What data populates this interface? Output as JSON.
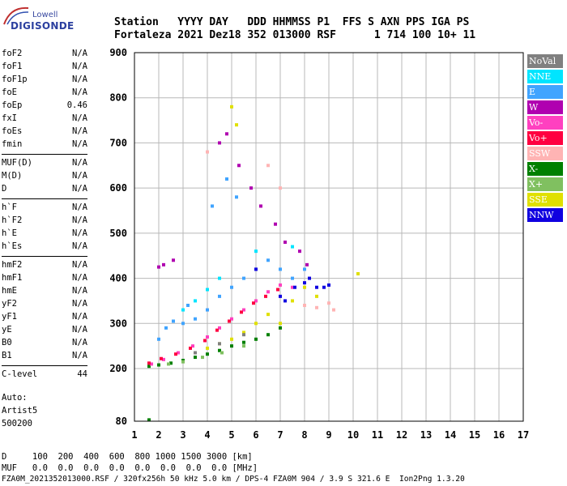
{
  "logo": {
    "top": "Lowell",
    "main": "DIGISONDE"
  },
  "header": {
    "line1": "Station   YYYY DAY   DDD HHMMSS P1  FFS S AXN PPS IGA PS",
    "line2": "Fortaleza 2021 Dez18 352 013000 RSF      1 714 100 10+ 11"
  },
  "params": [
    {
      "group": 0,
      "name": "foF2",
      "value": "N/A"
    },
    {
      "group": 0,
      "name": "foF1",
      "value": "N/A"
    },
    {
      "group": 0,
      "name": "foF1p",
      "value": "N/A"
    },
    {
      "group": 0,
      "name": "foE",
      "value": "N/A"
    },
    {
      "group": 0,
      "name": "foEp",
      "value": "0.46"
    },
    {
      "group": 0,
      "name": "fxI",
      "value": "N/A"
    },
    {
      "group": 0,
      "name": "foEs",
      "value": "N/A"
    },
    {
      "group": 0,
      "name": "fmin",
      "value": "N/A"
    },
    {
      "group": 1,
      "name": "MUF(D)",
      "value": "N/A"
    },
    {
      "group": 1,
      "name": "M(D)",
      "value": "N/A"
    },
    {
      "group": 1,
      "name": "D",
      "value": "N/A"
    },
    {
      "group": 2,
      "name": "h`F",
      "value": "N/A"
    },
    {
      "group": 2,
      "name": "h`F2",
      "value": "N/A"
    },
    {
      "group": 2,
      "name": "h`E",
      "value": "N/A"
    },
    {
      "group": 2,
      "name": "h`Es",
      "value": "N/A"
    },
    {
      "group": 3,
      "name": "hmF2",
      "value": "N/A"
    },
    {
      "group": 3,
      "name": "hmF1",
      "value": "N/A"
    },
    {
      "group": 3,
      "name": "hmE",
      "value": "N/A"
    },
    {
      "group": 3,
      "name": "yF2",
      "value": "N/A"
    },
    {
      "group": 3,
      "name": "yF1",
      "value": "N/A"
    },
    {
      "group": 3,
      "name": "yE",
      "value": "N/A"
    },
    {
      "group": 3,
      "name": "B0",
      "value": "N/A"
    },
    {
      "group": 3,
      "name": "B1",
      "value": "N/A"
    },
    {
      "group": 4,
      "name": "C-level",
      "value": "44"
    }
  ],
  "auto": {
    "label": "Auto:",
    "artist": "Artist5",
    "version": "500200"
  },
  "bottom": {
    "d_row": "D     100  200  400  600  800 1000 1500 3000 [km]",
    "muf_row": "MUF   0.0  0.0  0.0  0.0  0.0  0.0  0.0  0.0 [MHz]",
    "footer": "FZA0M_2021352013000.RSF / 320fx256h 50 kHz 5.0 km / DPS-4 FZA0M 904 / 3.9 S 321.6 E  Ion2Png 1.3.20"
  },
  "legend": [
    {
      "label": "NoVal",
      "bg": "#808080",
      "fg": "#ffffff"
    },
    {
      "label": "NNE",
      "bg": "#00e5ff",
      "fg": "#ffffff"
    },
    {
      "label": "E",
      "bg": "#40a4ff",
      "fg": "#ffffff"
    },
    {
      "label": "W",
      "bg": "#b000b0",
      "fg": "#ffffff"
    },
    {
      "label": "Vo-",
      "bg": "#ff40c0",
      "fg": "#ffffff"
    },
    {
      "label": "Vo+",
      "bg": "#ff0040",
      "fg": "#ffffff"
    },
    {
      "label": "SSW",
      "bg": "#ffb4b4",
      "fg": "#ffffff"
    },
    {
      "label": "X-",
      "bg": "#008000",
      "fg": "#ffffff"
    },
    {
      "label": "X+",
      "bg": "#80c060",
      "fg": "#ffffff"
    },
    {
      "label": "SSE",
      "bg": "#e0e000",
      "fg": "#ffffff"
    },
    {
      "label": "NNW",
      "bg": "#1000e0",
      "fg": "#ffffff"
    }
  ],
  "chart_data": {
    "type": "scatter",
    "title": "",
    "xlabel": "",
    "ylabel": "",
    "xlim": [
      1,
      17
    ],
    "ylim": [
      80,
      900
    ],
    "x_ticks": [
      1,
      2,
      3,
      4,
      5,
      6,
      7,
      8,
      9,
      10,
      11,
      12,
      13,
      14,
      15,
      16,
      17
    ],
    "y_ticks": [
      80,
      200,
      300,
      400,
      500,
      600,
      700,
      800,
      900
    ],
    "grid": true,
    "legend_position": "right",
    "series": [
      {
        "name": "X-",
        "color": "#008000",
        "points": [
          [
            1.6,
            205
          ],
          [
            2.0,
            208
          ],
          [
            2.5,
            212
          ],
          [
            3.0,
            218
          ],
          [
            3.5,
            225
          ],
          [
            4.0,
            232
          ],
          [
            4.5,
            240
          ],
          [
            5.0,
            250
          ],
          [
            5.5,
            258
          ],
          [
            6.0,
            265
          ],
          [
            6.5,
            275
          ],
          [
            7.0,
            290
          ],
          [
            1.6,
            83
          ]
        ]
      },
      {
        "name": "E",
        "color": "#40a4ff",
        "points": [
          [
            2.0,
            265
          ],
          [
            2.3,
            290
          ],
          [
            2.6,
            305
          ],
          [
            3.0,
            300
          ],
          [
            3.2,
            340
          ],
          [
            3.5,
            310
          ],
          [
            4.0,
            330
          ],
          [
            4.5,
            360
          ],
          [
            5.0,
            380
          ],
          [
            5.5,
            400
          ],
          [
            6.0,
            420
          ],
          [
            6.5,
            440
          ],
          [
            7.0,
            420
          ],
          [
            7.5,
            400
          ],
          [
            8.0,
            420
          ],
          [
            4.2,
            560
          ],
          [
            4.8,
            620
          ],
          [
            5.2,
            580
          ]
        ]
      },
      {
        "name": "Vo-",
        "color": "#ff40c0",
        "points": [
          [
            1.7,
            210
          ],
          [
            2.2,
            220
          ],
          [
            2.8,
            235
          ],
          [
            3.4,
            250
          ],
          [
            4.0,
            270
          ],
          [
            4.5,
            290
          ],
          [
            5.0,
            310
          ],
          [
            5.5,
            330
          ],
          [
            6.0,
            350
          ],
          [
            6.5,
            370
          ],
          [
            7.0,
            385
          ],
          [
            7.5,
            380
          ]
        ]
      },
      {
        "name": "Vo+",
        "color": "#ff0040",
        "points": [
          [
            1.6,
            212
          ],
          [
            2.1,
            222
          ],
          [
            2.7,
            232
          ],
          [
            3.3,
            245
          ],
          [
            3.9,
            262
          ],
          [
            4.4,
            285
          ],
          [
            4.9,
            305
          ],
          [
            5.4,
            325
          ],
          [
            5.9,
            345
          ],
          [
            6.4,
            360
          ],
          [
            6.9,
            375
          ]
        ]
      },
      {
        "name": "W",
        "color": "#b000b0",
        "points": [
          [
            2.0,
            425
          ],
          [
            2.2,
            430
          ],
          [
            2.6,
            440
          ],
          [
            4.5,
            700
          ],
          [
            4.8,
            720
          ],
          [
            5.3,
            650
          ],
          [
            5.8,
            600
          ],
          [
            6.2,
            560
          ],
          [
            6.8,
            520
          ],
          [
            7.2,
            480
          ],
          [
            7.8,
            460
          ],
          [
            8.1,
            430
          ]
        ]
      },
      {
        "name": "SSE",
        "color": "#e0e000",
        "points": [
          [
            4.0,
            245
          ],
          [
            4.5,
            255
          ],
          [
            5.0,
            265
          ],
          [
            5.5,
            280
          ],
          [
            6.0,
            300
          ],
          [
            6.5,
            320
          ],
          [
            7.0,
            300
          ],
          [
            7.5,
            350
          ],
          [
            8.0,
            380
          ],
          [
            8.5,
            360
          ],
          [
            10.2,
            410
          ],
          [
            5.0,
            780
          ],
          [
            5.2,
            740
          ]
        ]
      },
      {
        "name": "SSW",
        "color": "#ffb4b4",
        "points": [
          [
            8.0,
            340
          ],
          [
            8.5,
            335
          ],
          [
            9.0,
            345
          ],
          [
            9.2,
            330
          ],
          [
            7.0,
            600
          ],
          [
            6.5,
            650
          ],
          [
            4.0,
            680
          ]
        ]
      },
      {
        "name": "NNE",
        "color": "#00e5ff",
        "points": [
          [
            3.0,
            330
          ],
          [
            3.5,
            350
          ],
          [
            4.0,
            375
          ],
          [
            4.5,
            400
          ],
          [
            6.0,
            460
          ],
          [
            7.5,
            470
          ]
        ]
      },
      {
        "name": "NNW",
        "color": "#1000e0",
        "points": [
          [
            7.2,
            350
          ],
          [
            7.6,
            380
          ],
          [
            8.0,
            390
          ],
          [
            8.2,
            400
          ],
          [
            8.5,
            380
          ],
          [
            8.8,
            380
          ],
          [
            9.0,
            385
          ],
          [
            6.0,
            420
          ],
          [
            7.0,
            360
          ]
        ]
      },
      {
        "name": "X+",
        "color": "#80c060",
        "points": [
          [
            2.4,
            210
          ],
          [
            3.0,
            215
          ],
          [
            3.8,
            225
          ],
          [
            4.6,
            235
          ],
          [
            5.5,
            250
          ]
        ]
      },
      {
        "name": "NoVal",
        "color": "#808080",
        "points": [
          [
            3.5,
            235
          ],
          [
            4.5,
            255
          ],
          [
            5.5,
            275
          ]
        ]
      }
    ]
  }
}
